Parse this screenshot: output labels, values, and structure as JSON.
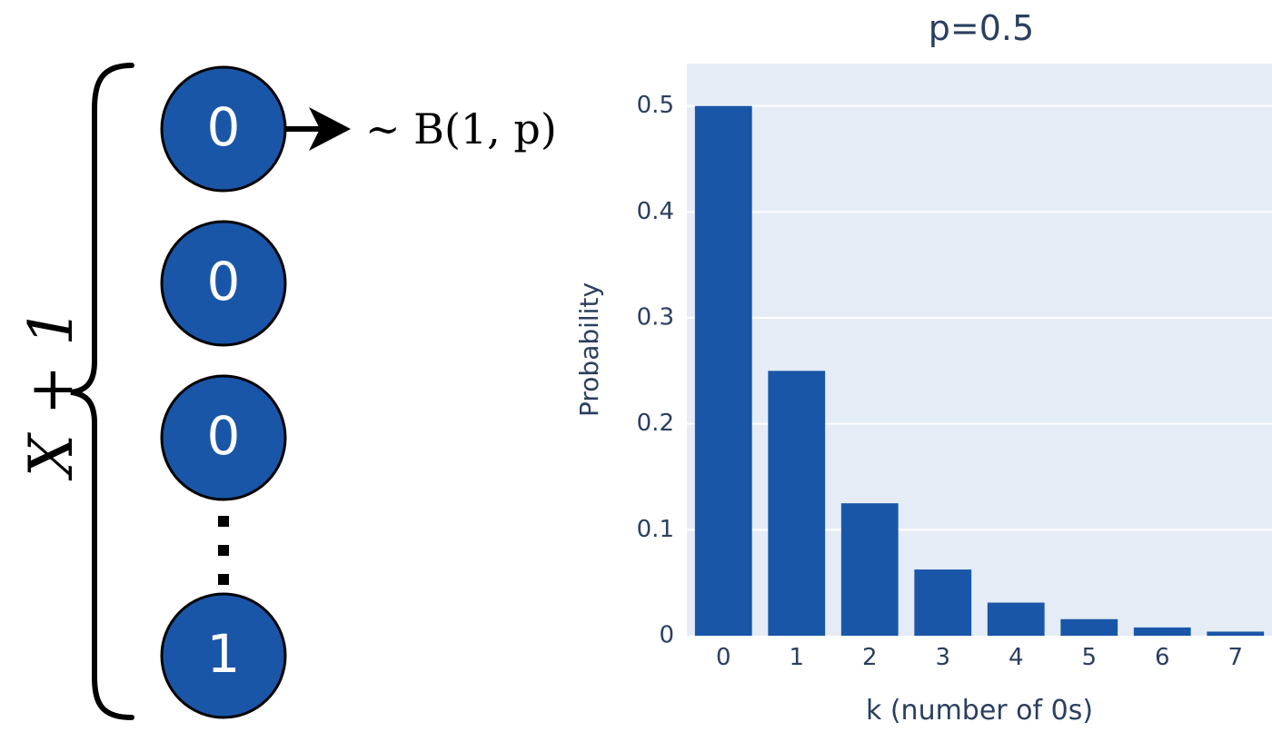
{
  "diagram": {
    "brace_label": "X + 1",
    "nodes": [
      "0",
      "0",
      "0",
      "1"
    ],
    "arrow_label": "∼ B(1, p)",
    "ellipsis": "⋮",
    "node_color": "#1a56a8",
    "node_text_color": "#ffffff"
  },
  "chart_data": {
    "type": "bar",
    "title": "p=0.5",
    "xlabel": "k (number of 0s)",
    "ylabel": "Probability",
    "categories": [
      "0",
      "1",
      "2",
      "3",
      "4",
      "5",
      "6",
      "7"
    ],
    "values": [
      0.5,
      0.25,
      0.125,
      0.0625,
      0.03125,
      0.015625,
      0.0078125,
      0.00390625
    ],
    "ylim": [
      0,
      0.54
    ],
    "yticks": [
      0,
      0.1,
      0.2,
      0.3,
      0.4,
      0.5
    ],
    "ytick_labels": [
      "0",
      "0.1",
      "0.2",
      "0.3",
      "0.4",
      "0.5"
    ],
    "grid": true,
    "bar_color": "#1a56a8",
    "plot_bg": "#e5ecf6",
    "text_color": "#2a3f5f"
  }
}
